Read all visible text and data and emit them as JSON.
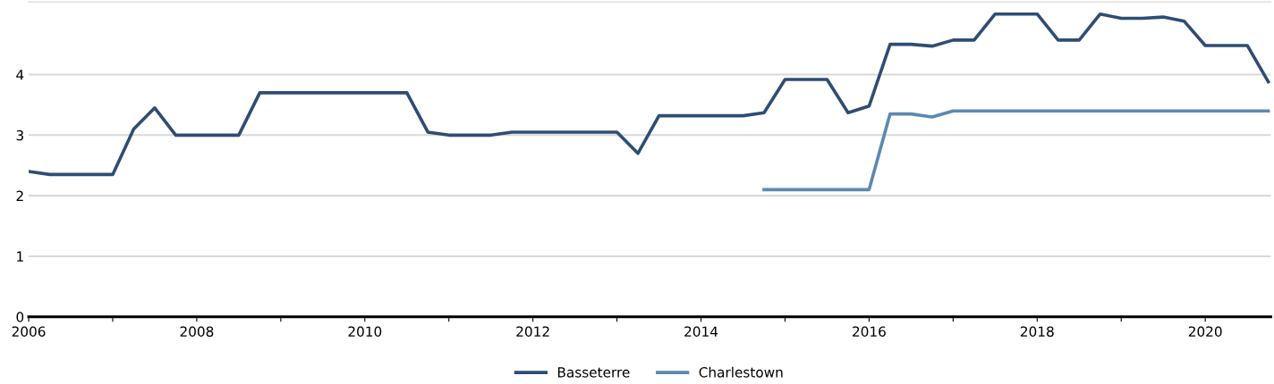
{
  "chart_data": {
    "type": "line",
    "x": [
      2006.0,
      2006.25,
      2006.5,
      2006.75,
      2007.0,
      2007.25,
      2007.5,
      2007.75,
      2008.0,
      2008.25,
      2008.5,
      2008.75,
      2009.0,
      2009.25,
      2009.5,
      2009.75,
      2010.0,
      2010.25,
      2010.5,
      2010.75,
      2011.0,
      2011.25,
      2011.5,
      2011.75,
      2012.0,
      2012.25,
      2012.5,
      2012.75,
      2013.0,
      2013.25,
      2013.5,
      2013.75,
      2014.0,
      2014.25,
      2014.5,
      2014.75,
      2015.0,
      2015.25,
      2015.5,
      2015.75,
      2016.0,
      2016.25,
      2016.5,
      2016.75,
      2017.0,
      2017.25,
      2017.5,
      2017.75,
      2018.0,
      2018.25,
      2018.5,
      2018.75,
      2019.0,
      2019.25,
      2019.5,
      2019.75,
      2020.0,
      2020.25,
      2020.5,
      2020.75
    ],
    "series": [
      {
        "name": "Basseterre",
        "color": "#2e4d74",
        "values": [
          2.4,
          2.35,
          2.35,
          2.35,
          2.35,
          3.1,
          3.45,
          3.0,
          3.0,
          3.0,
          3.0,
          3.7,
          3.7,
          3.7,
          3.7,
          3.7,
          3.7,
          3.7,
          3.7,
          3.05,
          3.0,
          3.0,
          3.0,
          3.05,
          3.05,
          3.05,
          3.05,
          3.05,
          3.05,
          2.7,
          3.32,
          3.32,
          3.32,
          3.32,
          3.32,
          3.37,
          3.92,
          3.92,
          3.92,
          3.37,
          3.48,
          4.5,
          4.5,
          4.47,
          4.57,
          4.57,
          5.0,
          5.0,
          5.0,
          4.57,
          4.57,
          5.0,
          4.93,
          4.93,
          4.95,
          4.88,
          4.48,
          4.48,
          4.48,
          3.88
        ]
      },
      {
        "name": "Charlestown",
        "color": "#5b89b0",
        "x": [
          2014.75,
          2015.0,
          2015.25,
          2015.5,
          2015.75,
          2016.0,
          2016.25,
          2016.5,
          2016.75,
          2017.0,
          2017.25,
          2017.5,
          2017.75,
          2018.0,
          2018.25,
          2018.5,
          2018.75,
          2019.0,
          2019.25,
          2019.5,
          2019.75,
          2020.0,
          2020.25,
          2020.5,
          2020.75
        ],
        "values": [
          2.1,
          2.1,
          2.1,
          2.1,
          2.1,
          2.1,
          3.35,
          3.35,
          3.3,
          3.4,
          3.4,
          3.4,
          3.4,
          3.4,
          3.4,
          3.4,
          3.4,
          3.4,
          3.4,
          3.4,
          3.4,
          3.4,
          3.4,
          3.4,
          3.4
        ]
      }
    ],
    "xlim": [
      2006,
      2020.78
    ],
    "xticks": [
      2006,
      {
        "value": 2007,
        "label": null
      },
      2008,
      {
        "value": 2009,
        "label": null
      },
      2010,
      {
        "value": 2011,
        "label": null
      },
      2012,
      {
        "value": 2013,
        "label": null
      },
      2014,
      {
        "value": 2015,
        "label": null
      },
      2016,
      {
        "value": 2017,
        "label": null
      },
      2018,
      {
        "value": 2019,
        "label": null
      },
      2020
    ],
    "ylim": [
      0,
      5.2
    ],
    "yticks": [
      0,
      1,
      2,
      3,
      4
    ],
    "grid": "y",
    "legend": "bottom",
    "marker": "none",
    "line_style": "solid"
  }
}
